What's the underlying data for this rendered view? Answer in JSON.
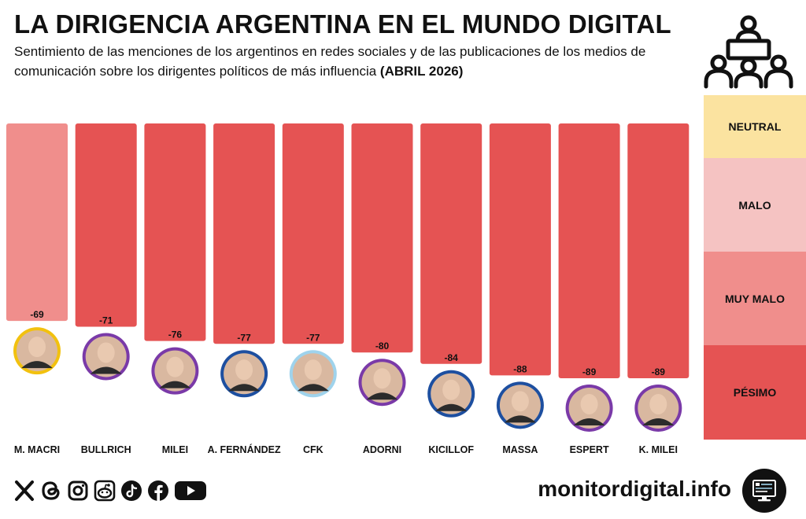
{
  "title": "LA DIRIGENCIA ARGENTINA EN EL MUNDO DIGITAL",
  "subtitle_main": "Sentimiento de las menciones de los argentinos en redes sociales y de las publicaciones de los medios de comunicación sobre los dirigentes políticos de más influencia",
  "subtitle_period": "(ABRIL 2026)",
  "legend": [
    {
      "label": "NEUTRAL",
      "color": "#fbe3a0"
    },
    {
      "label": "MALO",
      "color": "#f5c3c2"
    },
    {
      "label": "MUY MALO",
      "color": "#f08e8c"
    },
    {
      "label": "PÉSIMO",
      "color": "#e55353"
    }
  ],
  "colors": {
    "bar_strong": "#e55353",
    "bar_light": "#f08e8c",
    "text": "#111111"
  },
  "chart_data": {
    "type": "bar",
    "orientation": "vertical-negative",
    "categories": [
      "M. MACRI",
      "BULLRICH",
      "MILEI",
      "A. FERNÁNDEZ",
      "CFK",
      "ADORNI",
      "KICILLOF",
      "MASSA",
      "ESPERT",
      "K. MILEI"
    ],
    "values": [
      -69,
      -71,
      -76,
      -77,
      -77,
      -80,
      -84,
      -88,
      -89,
      -89
    ],
    "value_labels": [
      "-69",
      "-71",
      "-76",
      "-77",
      "-77",
      "-80",
      "-84",
      "-88",
      "-89",
      "-89"
    ],
    "portrait_ring_colors": [
      "#f2c10f",
      "#7a3aa8",
      "#7a3aa8",
      "#1d4fa0",
      "#9fd3ec",
      "#7a3aa8",
      "#1d4fa0",
      "#1d4fa0",
      "#7a3aa8",
      "#7a3aa8"
    ],
    "title": "",
    "xlabel": "",
    "ylabel": ""
  },
  "footer": {
    "website": "monitordigital.info",
    "social_icons": [
      "x-icon",
      "threads-icon",
      "instagram-icon",
      "reddit-icon",
      "tiktok-icon",
      "facebook-icon",
      "youtube-icon"
    ]
  }
}
